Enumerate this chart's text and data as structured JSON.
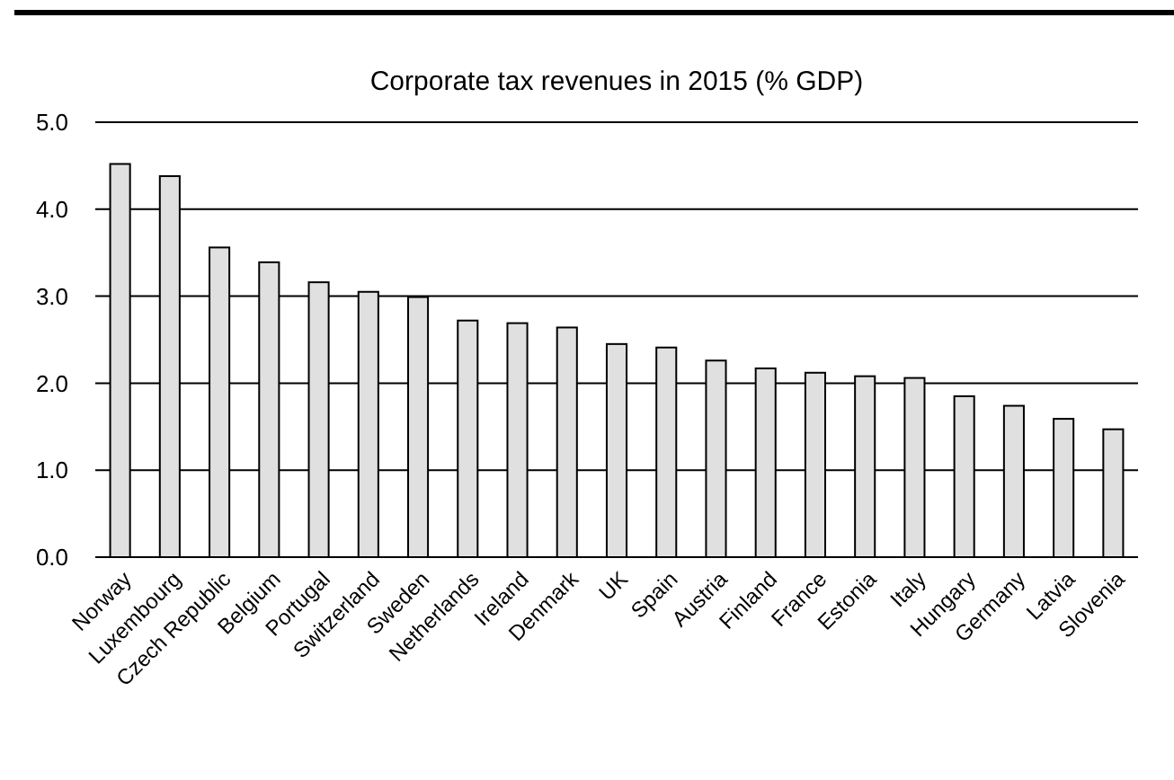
{
  "chart_data": {
    "type": "bar",
    "title": "Corporate tax revenues in 2015 (% GDP)",
    "categories": [
      "Norway",
      "Luxembourg",
      "Czech Republic",
      "Belgium",
      "Portugal",
      "Switzerland",
      "Sweden",
      "Netherlands",
      "Ireland",
      "Denmark",
      "UK",
      "Spain",
      "Austria",
      "Finland",
      "France",
      "Estonia",
      "Italy",
      "Hungary",
      "Germany",
      "Latvia",
      "Slovenia"
    ],
    "values": [
      4.52,
      4.38,
      3.56,
      3.39,
      3.16,
      3.05,
      2.99,
      2.72,
      2.69,
      2.64,
      2.45,
      2.41,
      2.26,
      2.17,
      2.12,
      2.08,
      2.06,
      1.85,
      1.74,
      1.59,
      1.47
    ],
    "color": "#e0e0e0",
    "ylim": [
      0,
      5
    ],
    "yticks": [
      {
        "value": 0,
        "label": "0.0"
      },
      {
        "value": 1,
        "label": "1.0"
      },
      {
        "value": 2,
        "label": "2.0"
      },
      {
        "value": 3,
        "label": "3.0"
      },
      {
        "value": 4,
        "label": "4.0"
      },
      {
        "value": 5,
        "label": "5.0"
      }
    ],
    "grid": "y"
  }
}
